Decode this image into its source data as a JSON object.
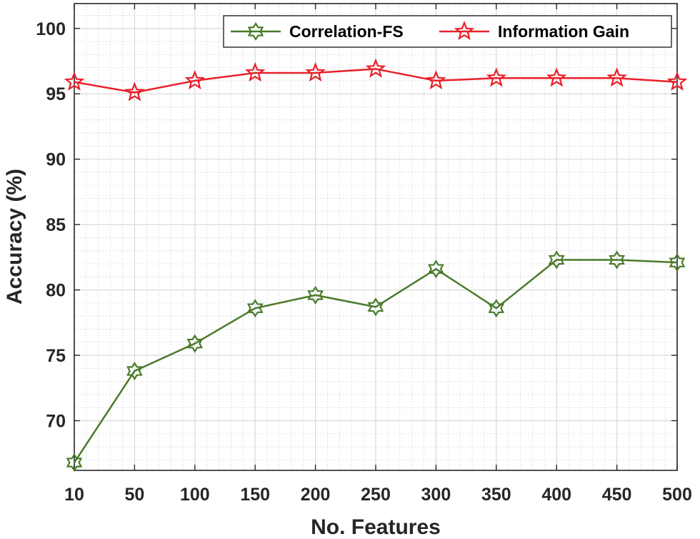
{
  "chart_data": {
    "type": "line",
    "title": "",
    "xlabel": "No. Features",
    "ylabel": "Accuracy (%)",
    "x": [
      10,
      50,
      100,
      150,
      200,
      250,
      300,
      350,
      400,
      450,
      500
    ],
    "x_tick_labels": [
      "10",
      "50",
      "100",
      "150",
      "200",
      "250",
      "300",
      "350",
      "400",
      "450",
      "500"
    ],
    "y_ticks": [
      70,
      75,
      80,
      85,
      90,
      95,
      100
    ],
    "y_tick_labels": [
      "70",
      "75",
      "80",
      "85",
      "90",
      "95",
      "100"
    ],
    "ylim": [
      66.2,
      101.9
    ],
    "grid": true,
    "minor_grid": true,
    "legend_position": "top-right",
    "series": [
      {
        "name": "Correlation-FS",
        "color": "#4a7a2a",
        "marker": "hexagram",
        "values": [
          66.8,
          73.8,
          75.9,
          78.6,
          79.6,
          78.7,
          81.6,
          78.6,
          82.3,
          82.3,
          82.1
        ]
      },
      {
        "name": "Information Gain",
        "color": "#e8202a",
        "marker": "pentagram",
        "values": [
          95.9,
          95.1,
          96.0,
          96.6,
          96.6,
          96.9,
          96.0,
          96.2,
          96.2,
          96.2,
          95.9
        ]
      }
    ]
  }
}
